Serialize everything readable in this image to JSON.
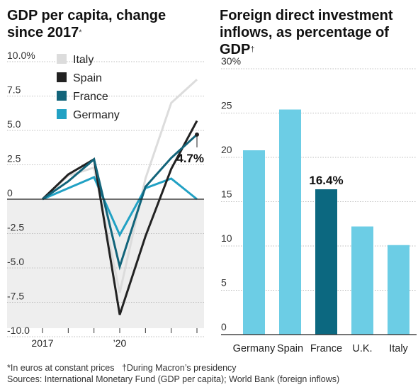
{
  "left_title": {
    "text": "GDP per capita, change since 2017",
    "mark": "*"
  },
  "right_title": {
    "text": "Foreign direct investment inflows, as percentage of GDP",
    "mark": "†"
  },
  "colors": {
    "Italy": "#dcdcdc",
    "Spain": "#222222",
    "France": "#12647a",
    "Germany": "#21a1c4",
    "bar_light": "#6ccde5",
    "bar_highlight": "#0c6880",
    "negative_shade": "#eeeeee"
  },
  "footer": {
    "note": "*In euros at constant prices   †During Macron’s presidency",
    "sources": "Sources: International Monetary Fund (GDP per capita); World Bank (foreign inflows)"
  },
  "chart_data": [
    {
      "type": "line",
      "title": "GDP per capita, change since 2017*",
      "x": [
        2017,
        2018,
        2019,
        2020,
        2021,
        2022,
        2023
      ],
      "x_tick_labels": [
        "2017",
        "",
        "",
        "’20",
        "",
        "",
        ""
      ],
      "y_tick_labels": [
        "10.0%",
        "7.5",
        "5.0",
        "2.5",
        "0",
        "-2.5",
        "-5.0",
        "-7.5",
        "-10.0"
      ],
      "ylim": [
        -10,
        10
      ],
      "legend_position": "top-left",
      "series": [
        {
          "name": "Italy",
          "values": [
            0,
            1.7,
            2.3,
            -6.8,
            1.5,
            7.0,
            8.7
          ]
        },
        {
          "name": "Spain",
          "values": [
            0,
            1.8,
            2.9,
            -8.4,
            -2.7,
            2.2,
            5.7
          ]
        },
        {
          "name": "France",
          "values": [
            0,
            1.3,
            2.9,
            -4.9,
            0.9,
            3.0,
            4.7
          ]
        },
        {
          "name": "Germany",
          "values": [
            0,
            0.8,
            1.6,
            -2.6,
            0.8,
            1.5,
            0.0
          ]
        }
      ],
      "annotation": {
        "series": "France",
        "label": "4.7%"
      }
    },
    {
      "type": "bar",
      "title": "Foreign direct investment inflows, as percentage of GDP†",
      "categories": [
        "Germany",
        "Spain",
        "France",
        "U.K.",
        "Italy"
      ],
      "values": [
        20.8,
        25.4,
        16.4,
        12.2,
        10.1
      ],
      "highlight": "France",
      "highlight_label": "16.4%",
      "y_tick_labels": [
        "30%",
        "25",
        "20",
        "15",
        "10",
        "5",
        "0"
      ],
      "ylim": [
        0,
        30
      ]
    }
  ]
}
